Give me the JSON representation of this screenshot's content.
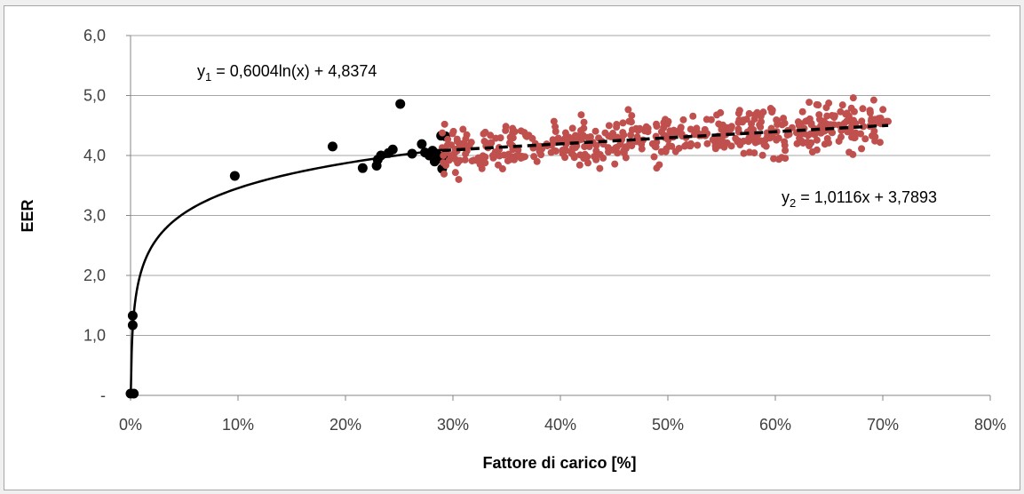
{
  "chart_data": {
    "type": "scatter",
    "title": "",
    "xlabel": "Fattore di carico [%]",
    "ylabel": "EER",
    "xlim": [
      0,
      0.8
    ],
    "ylim": [
      0,
      6
    ],
    "x_ticks": [
      {
        "v": 0.0,
        "label": "0%"
      },
      {
        "v": 0.1,
        "label": "10%"
      },
      {
        "v": 0.2,
        "label": "20%"
      },
      {
        "v": 0.3,
        "label": "30%"
      },
      {
        "v": 0.4,
        "label": "40%"
      },
      {
        "v": 0.5,
        "label": "50%"
      },
      {
        "v": 0.6,
        "label": "60%"
      },
      {
        "v": 0.7,
        "label": "70%"
      },
      {
        "v": 0.8,
        "label": "80%"
      }
    ],
    "y_ticks": [
      {
        "v": 0,
        "label": "-"
      },
      {
        "v": 1,
        "label": "1,0"
      },
      {
        "v": 2,
        "label": "2,0"
      },
      {
        "v": 3,
        "label": "3,0"
      },
      {
        "v": 4,
        "label": "4,0"
      },
      {
        "v": 5,
        "label": "5,0"
      },
      {
        "v": 6,
        "label": "6,0"
      }
    ],
    "grid": {
      "horizontal": true,
      "vertical": false
    },
    "colors": {
      "series_low": "#000000",
      "series_high": "#c0504d",
      "grid": "#a6a6a6"
    },
    "series": [
      {
        "color": "#000000",
        "points": [
          [
            0.0,
            0.03
          ],
          [
            0.003,
            0.03
          ],
          [
            0.002,
            1.33
          ],
          [
            0.002,
            1.17
          ],
          [
            0.097,
            3.66
          ],
          [
            0.188,
            4.15
          ],
          [
            0.216,
            3.79
          ],
          [
            0.229,
            3.83
          ],
          [
            0.23,
            3.93
          ],
          [
            0.233,
            4.0
          ],
          [
            0.24,
            4.04
          ],
          [
            0.244,
            4.1
          ],
          [
            0.251,
            4.86
          ],
          [
            0.262,
            4.03
          ],
          [
            0.271,
            4.19
          ],
          [
            0.274,
            4.05
          ],
          [
            0.278,
            4.0
          ],
          [
            0.281,
            4.08
          ],
          [
            0.283,
            3.9
          ],
          [
            0.285,
            4.03
          ],
          [
            0.288,
            3.95
          ],
          [
            0.289,
            4.33
          ],
          [
            0.29,
            3.78
          ],
          [
            0.291,
            4.05
          ],
          [
            0.293,
            4.32
          ],
          [
            0.294,
            3.99
          ]
        ]
      },
      {
        "color": "#c0504d",
        "generated_cloud": {
          "x_range": [
            0.29,
            0.705
          ],
          "y_center": "y2",
          "y_spread": 0.36,
          "count": 520,
          "seed": 7
        }
      }
    ],
    "trendlines": [
      {
        "kind": "log",
        "a": 0.6004,
        "b": 4.8374,
        "x_range": [
          0.001,
          0.29
        ],
        "style": "solid",
        "color": "#000000"
      },
      {
        "kind": "linear",
        "a": 1.0116,
        "b": 3.7893,
        "x_range": [
          0.29,
          0.705
        ],
        "style": "dashed",
        "color": "#000000"
      }
    ],
    "annotations": {
      "eq1": {
        "var": "y",
        "sub": "1",
        "rest": " = 0,6004ln(x) + 4,8374"
      },
      "eq2": {
        "var": "y",
        "sub": "2",
        "rest": " = 1,0116x + 3,7893"
      }
    }
  }
}
